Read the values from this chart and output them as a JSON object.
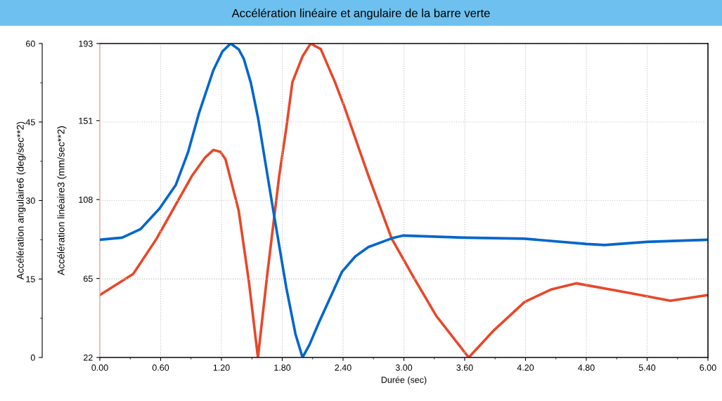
{
  "chart_data": {
    "type": "line",
    "title": "Accélération linéaire et angulaire de la barre verte",
    "xlabel": "Durée (sec)",
    "ylabel": "Accélération angulaire6 (deg/sec**2)",
    "y2label": "Accélération linéaire3 (mm/sec**2)",
    "xlim": [
      0,
      6
    ],
    "xticks": [
      {
        "value": 0,
        "label": "0.00"
      },
      {
        "value": 0.6,
        "label": "0.60"
      },
      {
        "value": 1.2,
        "label": "1.20"
      },
      {
        "value": 1.8,
        "label": "1.80"
      },
      {
        "value": 2.4,
        "label": "2.40"
      },
      {
        "value": 3.0,
        "label": "3.00"
      },
      {
        "value": 3.6,
        "label": "3.60"
      },
      {
        "value": 4.2,
        "label": "4.20"
      },
      {
        "value": 4.8,
        "label": "4.80"
      },
      {
        "value": 5.4,
        "label": "5.40"
      },
      {
        "value": 6.0,
        "label": "6.00"
      }
    ],
    "ylim": [
      0,
      60
    ],
    "yticks": [
      0,
      15,
      30,
      45,
      60
    ],
    "y2lim": [
      22,
      193
    ],
    "y2ticks": [
      22,
      65,
      108,
      151,
      193
    ],
    "grid": true,
    "legend": false,
    "marker": "none",
    "line_style": "solid",
    "series": [
      {
        "color": "#0066cc",
        "x": [
          0,
          0.22,
          0.4,
          0.59,
          0.75,
          0.87,
          0.98,
          1.12,
          1.21,
          1.29,
          1.37,
          1.42,
          1.49,
          1.56,
          1.7,
          1.84,
          1.93,
          2.0,
          2.07,
          2.16,
          2.39,
          2.52,
          2.65,
          2.9,
          2.99,
          3.59,
          4.19,
          4.8,
          4.98,
          5.4,
          6.0
        ],
        "values": [
          22.5,
          22.9,
          24.5,
          28.5,
          33.0,
          39.2,
          46.8,
          54.9,
          58.5,
          60,
          58.9,
          57.1,
          52.5,
          45.9,
          29.4,
          13.3,
          4.5,
          0,
          2.5,
          6.6,
          16.4,
          19.3,
          21.1,
          22.9,
          23.3,
          22.9,
          22.7,
          21.7,
          21.5,
          22.1,
          22.5
        ]
      },
      {
        "color": "#e8472a",
        "axis": "y2",
        "x": [
          0,
          0.33,
          0.56,
          0.91,
          1.04,
          1.12,
          1.19,
          1.24,
          1.37,
          1.47,
          1.56,
          1.65,
          1.77,
          1.84,
          1.9,
          2.0,
          2.08,
          2.18,
          2.25,
          2.32,
          2.41,
          2.65,
          2.88,
          3.11,
          3.32,
          3.64,
          3.89,
          4.19,
          4.45,
          4.7,
          5.21,
          5.63,
          6.0
        ],
        "values": [
          56,
          67.5,
          86.7,
          121,
          131,
          135,
          134,
          130,
          102,
          63.7,
          22,
          66.3,
          121,
          147,
          172,
          186,
          193,
          190,
          181,
          172,
          159,
          121,
          86.7,
          64.3,
          44.6,
          22,
          36.9,
          52.2,
          59,
          62.4,
          57.3,
          52.9,
          56
        ]
      }
    ]
  }
}
